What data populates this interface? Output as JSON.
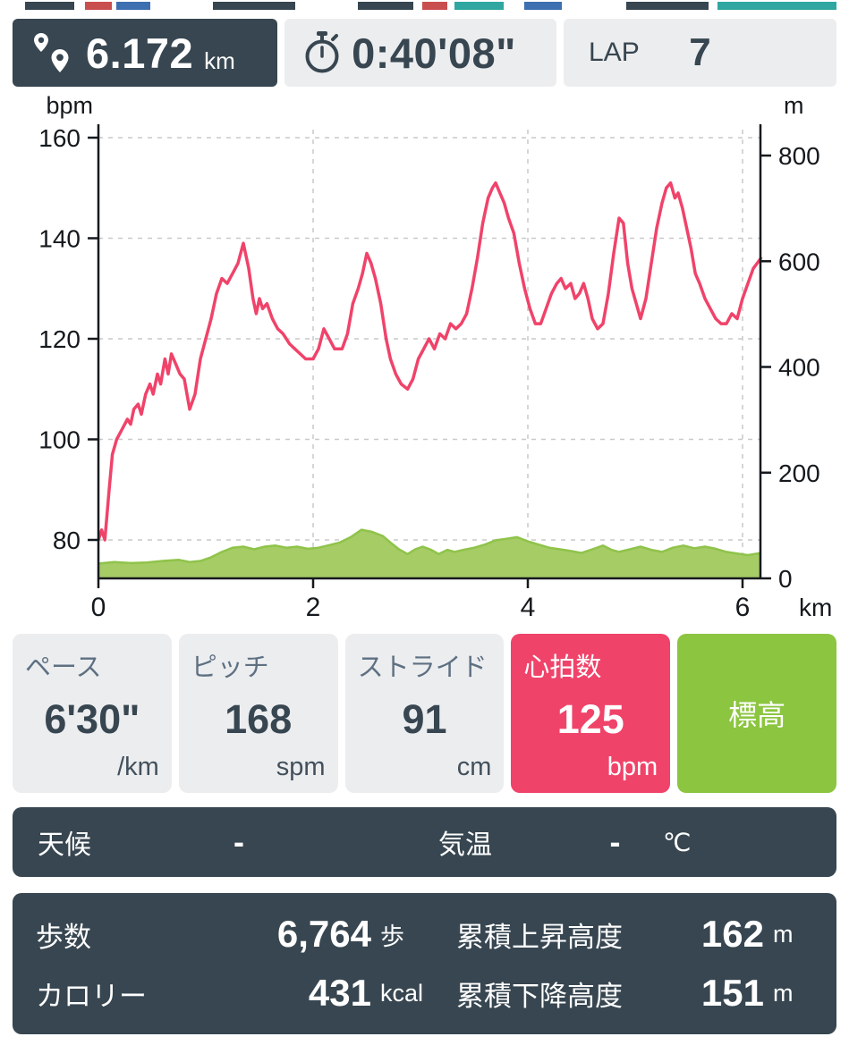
{
  "header": {
    "distance": {
      "value": "6.172",
      "unit": "km"
    },
    "duration": {
      "value": "0:40'08\""
    },
    "lap": {
      "label": "LAP",
      "value": "7"
    }
  },
  "chart_data": {
    "type": "line",
    "title": "",
    "left_axis": {
      "label": "bpm",
      "ticks": [
        80,
        100,
        120,
        140,
        160
      ]
    },
    "right_axis": {
      "label": "m",
      "ticks": [
        0,
        200,
        400,
        600,
        800
      ]
    },
    "x_axis": {
      "label": "km",
      "ticks": [
        0,
        2,
        4,
        6
      ],
      "max": 6.172
    },
    "grid": true,
    "series": [
      {
        "name": "心拍数",
        "unit": "bpm",
        "axis": "left",
        "type": "line",
        "color": "#F0436A",
        "points": [
          [
            0,
            80
          ],
          [
            0.03,
            82
          ],
          [
            0.06,
            80
          ],
          [
            0.1,
            90
          ],
          [
            0.13,
            97
          ],
          [
            0.17,
            100
          ],
          [
            0.22,
            102
          ],
          [
            0.27,
            104
          ],
          [
            0.3,
            103
          ],
          [
            0.33,
            106
          ],
          [
            0.37,
            107
          ],
          [
            0.4,
            105
          ],
          [
            0.44,
            109
          ],
          [
            0.48,
            111
          ],
          [
            0.51,
            109
          ],
          [
            0.55,
            113
          ],
          [
            0.58,
            111
          ],
          [
            0.62,
            116
          ],
          [
            0.65,
            113
          ],
          [
            0.68,
            117
          ],
          [
            0.72,
            115
          ],
          [
            0.76,
            113
          ],
          [
            0.8,
            112
          ],
          [
            0.85,
            106
          ],
          [
            0.9,
            109
          ],
          [
            0.95,
            116
          ],
          [
            1.0,
            120
          ],
          [
            1.05,
            124
          ],
          [
            1.1,
            129
          ],
          [
            1.15,
            132
          ],
          [
            1.2,
            131
          ],
          [
            1.25,
            133
          ],
          [
            1.3,
            135
          ],
          [
            1.35,
            139
          ],
          [
            1.4,
            134
          ],
          [
            1.44,
            128
          ],
          [
            1.47,
            125
          ],
          [
            1.5,
            128
          ],
          [
            1.53,
            126
          ],
          [
            1.57,
            127
          ],
          [
            1.62,
            124
          ],
          [
            1.67,
            122
          ],
          [
            1.72,
            121
          ],
          [
            1.78,
            119
          ],
          [
            1.83,
            118
          ],
          [
            1.88,
            117
          ],
          [
            1.93,
            116
          ],
          [
            2.0,
            116
          ],
          [
            2.05,
            118
          ],
          [
            2.1,
            122
          ],
          [
            2.15,
            120
          ],
          [
            2.2,
            118
          ],
          [
            2.27,
            118
          ],
          [
            2.32,
            121
          ],
          [
            2.37,
            127
          ],
          [
            2.42,
            130
          ],
          [
            2.46,
            133
          ],
          [
            2.5,
            137
          ],
          [
            2.54,
            135
          ],
          [
            2.58,
            132
          ],
          [
            2.63,
            127
          ],
          [
            2.68,
            120
          ],
          [
            2.72,
            116
          ],
          [
            2.77,
            113
          ],
          [
            2.82,
            111
          ],
          [
            2.88,
            110
          ],
          [
            2.93,
            112
          ],
          [
            2.98,
            116
          ],
          [
            3.03,
            118
          ],
          [
            3.08,
            120
          ],
          [
            3.13,
            118
          ],
          [
            3.18,
            121
          ],
          [
            3.23,
            120
          ],
          [
            3.28,
            123
          ],
          [
            3.33,
            122
          ],
          [
            3.38,
            123
          ],
          [
            3.43,
            125
          ],
          [
            3.48,
            130
          ],
          [
            3.53,
            136
          ],
          [
            3.58,
            143
          ],
          [
            3.63,
            148
          ],
          [
            3.67,
            150
          ],
          [
            3.7,
            151
          ],
          [
            3.74,
            149
          ],
          [
            3.78,
            147
          ],
          [
            3.82,
            144
          ],
          [
            3.87,
            141
          ],
          [
            3.92,
            135
          ],
          [
            3.97,
            130
          ],
          [
            4.02,
            126
          ],
          [
            4.07,
            123
          ],
          [
            4.12,
            123
          ],
          [
            4.17,
            126
          ],
          [
            4.22,
            129
          ],
          [
            4.27,
            131
          ],
          [
            4.31,
            132
          ],
          [
            4.35,
            130
          ],
          [
            4.4,
            131
          ],
          [
            4.44,
            128
          ],
          [
            4.48,
            129
          ],
          [
            4.52,
            131
          ],
          [
            4.56,
            128
          ],
          [
            4.6,
            124
          ],
          [
            4.65,
            122
          ],
          [
            4.7,
            123
          ],
          [
            4.75,
            129
          ],
          [
            4.8,
            137
          ],
          [
            4.85,
            144
          ],
          [
            4.89,
            143
          ],
          [
            4.93,
            135
          ],
          [
            4.97,
            130
          ],
          [
            5.01,
            127
          ],
          [
            5.05,
            124
          ],
          [
            5.1,
            128
          ],
          [
            5.15,
            135
          ],
          [
            5.2,
            142
          ],
          [
            5.25,
            147
          ],
          [
            5.29,
            150
          ],
          [
            5.33,
            151
          ],
          [
            5.37,
            148
          ],
          [
            5.4,
            149
          ],
          [
            5.44,
            146
          ],
          [
            5.48,
            142
          ],
          [
            5.52,
            138
          ],
          [
            5.56,
            133
          ],
          [
            5.6,
            131
          ],
          [
            5.65,
            128
          ],
          [
            5.7,
            126
          ],
          [
            5.75,
            124
          ],
          [
            5.8,
            123
          ],
          [
            5.85,
            123
          ],
          [
            5.9,
            125
          ],
          [
            5.95,
            124
          ],
          [
            6.0,
            128
          ],
          [
            6.05,
            131
          ],
          [
            6.1,
            134
          ],
          [
            6.17,
            136
          ]
        ]
      },
      {
        "name": "標高",
        "unit": "m",
        "axis": "right",
        "type": "area",
        "color": "#8FC34A",
        "fill": "#A6CC66",
        "points": [
          [
            0,
            28
          ],
          [
            0.15,
            31
          ],
          [
            0.3,
            29
          ],
          [
            0.45,
            30
          ],
          [
            0.6,
            33
          ],
          [
            0.75,
            35
          ],
          [
            0.85,
            31
          ],
          [
            0.95,
            33
          ],
          [
            1.05,
            40
          ],
          [
            1.15,
            50
          ],
          [
            1.25,
            58
          ],
          [
            1.35,
            60
          ],
          [
            1.45,
            55
          ],
          [
            1.55,
            60
          ],
          [
            1.65,
            62
          ],
          [
            1.75,
            58
          ],
          [
            1.85,
            60
          ],
          [
            1.95,
            56
          ],
          [
            2.05,
            58
          ],
          [
            2.15,
            63
          ],
          [
            2.25,
            68
          ],
          [
            2.35,
            78
          ],
          [
            2.45,
            92
          ],
          [
            2.55,
            88
          ],
          [
            2.65,
            80
          ],
          [
            2.72,
            68
          ],
          [
            2.8,
            55
          ],
          [
            2.88,
            46
          ],
          [
            2.95,
            55
          ],
          [
            3.02,
            60
          ],
          [
            3.1,
            54
          ],
          [
            3.17,
            46
          ],
          [
            3.25,
            54
          ],
          [
            3.32,
            50
          ],
          [
            3.4,
            54
          ],
          [
            3.5,
            58
          ],
          [
            3.6,
            64
          ],
          [
            3.7,
            72
          ],
          [
            3.8,
            75
          ],
          [
            3.9,
            78
          ],
          [
            4.0,
            70
          ],
          [
            4.1,
            64
          ],
          [
            4.2,
            58
          ],
          [
            4.3,
            55
          ],
          [
            4.4,
            52
          ],
          [
            4.5,
            48
          ],
          [
            4.6,
            55
          ],
          [
            4.7,
            62
          ],
          [
            4.78,
            54
          ],
          [
            4.85,
            50
          ],
          [
            4.95,
            55
          ],
          [
            5.05,
            60
          ],
          [
            5.15,
            54
          ],
          [
            5.25,
            50
          ],
          [
            5.35,
            58
          ],
          [
            5.45,
            62
          ],
          [
            5.55,
            57
          ],
          [
            5.65,
            60
          ],
          [
            5.75,
            56
          ],
          [
            5.85,
            50
          ],
          [
            5.95,
            47
          ],
          [
            6.05,
            44
          ],
          [
            6.17,
            48
          ]
        ]
      }
    ]
  },
  "metrics": [
    {
      "label": "ペース",
      "value": "6'30\"",
      "unit": "/km"
    },
    {
      "label": "ピッチ",
      "value": "168",
      "unit": "spm"
    },
    {
      "label": "ストライド",
      "value": "91",
      "unit": "cm"
    },
    {
      "label": "心拍数",
      "value": "125",
      "unit": "bpm"
    },
    {
      "label": "標高",
      "value": "",
      "unit": ""
    }
  ],
  "weather": {
    "label": "天候",
    "value": "-",
    "temp_label": "気温",
    "temp_value": "-",
    "temp_unit": "℃"
  },
  "summary": {
    "steps": {
      "label": "歩数",
      "value": "6,764",
      "unit": "歩"
    },
    "calories": {
      "label": "カロリー",
      "value": "431",
      "unit": "kcal"
    },
    "ascent": {
      "label": "累積上昇高度",
      "value": "162",
      "unit": "m"
    },
    "descent": {
      "label": "累積下降高度",
      "value": "151",
      "unit": "m"
    }
  },
  "colors": {
    "navy": "#374650",
    "pink": "#F0436A",
    "green": "#8CC540",
    "card_gray": "#ECEDEF"
  }
}
